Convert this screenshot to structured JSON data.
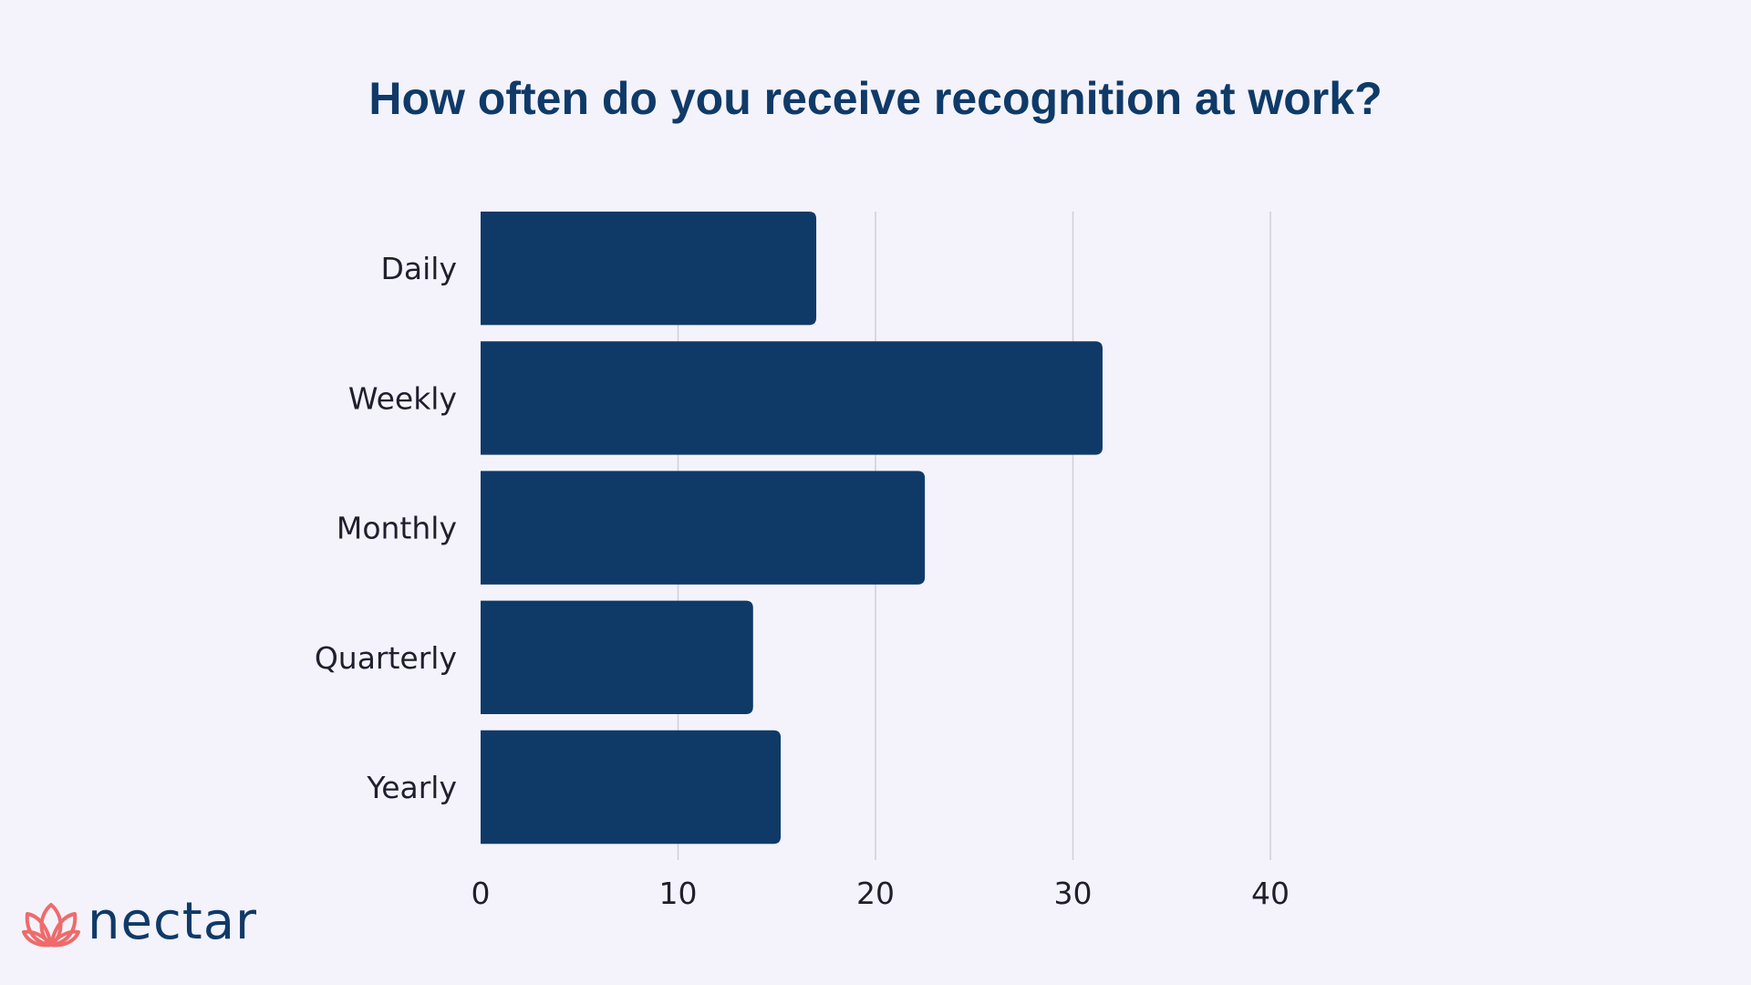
{
  "colors": {
    "background": "#f4f3fb",
    "bar": "#0f3a68",
    "title": "#0f3a68",
    "text": "#1f1f2e",
    "grid": "#cfcfd8",
    "logo_mark": "#ef6b6b",
    "logo_text": "#0f3a68"
  },
  "chart_data": {
    "type": "bar",
    "orientation": "horizontal",
    "title": "How often do you receive recognition at work?",
    "categories": [
      "Daily",
      "Weekly",
      "Monthly",
      "Quarterly",
      "Yearly"
    ],
    "values": [
      17,
      31.5,
      22.5,
      13.8,
      15.2
    ],
    "xticks": [
      0,
      10,
      20,
      30,
      40
    ],
    "xlim": [
      0,
      40
    ],
    "xlabel": "",
    "ylabel": "",
    "grid": "vertical",
    "legend": "none"
  },
  "logo": {
    "icon": "lotus-icon",
    "text": "nectar"
  }
}
